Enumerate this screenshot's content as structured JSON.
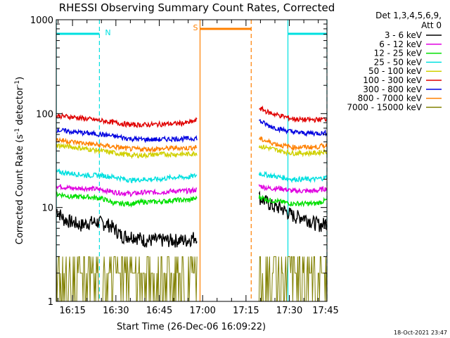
{
  "chart_data": {
    "type": "line",
    "title": "RHESSI Observing Summary Count Rates, Corrected",
    "xlabel": "Start Time (26-Dec-06 16:09:22)",
    "ylabel_main": "Corrected Count Rate (s",
    "ylabel_sup1": "-1",
    "ylabel_mid": " detector",
    "ylabel_sup2": "-1",
    "ylabel_end": ")",
    "yscale": "log",
    "ylim": [
      1,
      1000
    ],
    "xlim_min": [
      9.37,
      103.0
    ],
    "y_ticks": [
      "1",
      "10",
      "100",
      "1000"
    ],
    "x_ticks": [
      {
        "min": 15,
        "label": "16:15"
      },
      {
        "min": 30,
        "label": "16:30"
      },
      {
        "min": 45,
        "label": "16:45"
      },
      {
        "min": 60,
        "label": "17:00"
      },
      {
        "min": 75,
        "label": "17:15"
      },
      {
        "min": 90,
        "label": "17:30"
      },
      {
        "min": 105,
        "label": "17:45"
      }
    ],
    "legend": {
      "header1": "Det 1,3,4,5,6,9,",
      "header2": "Att 0",
      "position": "right"
    },
    "gap": [
      58.0,
      79.5
    ],
    "series": [
      {
        "name": "3 - 6 keV",
        "color": "#000000",
        "segments": [
          {
            "x": [
              9.4,
              12,
              15,
              18,
              21,
              24,
              28,
              32,
              36,
              40,
              44,
              48,
              52,
              55,
              58
            ],
            "y": [
              9.5,
              7.5,
              7,
              6.5,
              7,
              7,
              6.5,
              5,
              5,
              4.5,
              4.5,
              4.5,
              4.5,
              4.5,
              5
            ]
          },
          {
            "x": [
              79.5,
              81,
              83,
              85,
              87,
              89,
              92,
              95,
              98,
              101,
              103
            ],
            "y": [
              13,
              12,
              11,
              10,
              10,
              9,
              8,
              8,
              7,
              6.5,
              7
            ]
          }
        ]
      },
      {
        "name": "6 - 12 keV",
        "color": "#e000e0",
        "segments": [
          {
            "x": [
              9.4,
              15,
              20,
              25,
              30,
              35,
              40,
              45,
              50,
              55,
              58
            ],
            "y": [
              17,
              16,
              16,
              15.5,
              14.5,
              14,
              14.5,
              14.5,
              15,
              15,
              15.5
            ]
          },
          {
            "x": [
              79.5,
              83,
              87,
              91,
              95,
              99,
              103
            ],
            "y": [
              17,
              16,
              16,
              15,
              15,
              15,
              16
            ]
          }
        ]
      },
      {
        "name": "12 - 25 keV",
        "color": "#00e000",
        "segments": [
          {
            "x": [
              9.4,
              15,
              20,
              25,
              30,
              35,
              40,
              45,
              50,
              55,
              58
            ],
            "y": [
              14,
              13,
              13,
              12.5,
              11,
              11,
              11.5,
              11.5,
              12,
              12,
              12.5
            ]
          },
          {
            "x": [
              79.5,
              83,
              87,
              91,
              95,
              99,
              103
            ],
            "y": [
              13,
              12,
              11.5,
              11,
              11,
              11,
              12
            ]
          }
        ]
      },
      {
        "name": "25 - 50 keV",
        "color": "#00e0e0",
        "segments": [
          {
            "x": [
              9.4,
              15,
              20,
              25,
              30,
              35,
              40,
              45,
              50,
              55,
              58
            ],
            "y": [
              24,
              23,
              22,
              22,
              21,
              19.5,
              20,
              20,
              21,
              21,
              22
            ]
          },
          {
            "x": [
              79.5,
              83,
              87,
              91,
              95,
              99,
              103
            ],
            "y": [
              23,
              22,
              21,
              20,
              20,
              20,
              21
            ]
          }
        ]
      },
      {
        "name": "50 - 100 keV",
        "color": "#d0d000",
        "segments": [
          {
            "x": [
              9.4,
              15,
              20,
              25,
              30,
              35,
              40,
              45,
              50,
              55,
              58
            ],
            "y": [
              46,
              44,
              42,
              40,
              38,
              36,
              36,
              37,
              37,
              37,
              38
            ]
          },
          {
            "x": [
              79.5,
              83,
              87,
              91,
              95,
              99,
              103
            ],
            "y": [
              45,
              43,
              40,
              38,
              38,
              38,
              40
            ]
          }
        ]
      },
      {
        "name": "100 - 300 keV",
        "color": "#e00000",
        "segments": [
          {
            "x": [
              9.4,
              15,
              20,
              25,
              30,
              35,
              40,
              45,
              50,
              55,
              58
            ],
            "y": [
              95,
              92,
              88,
              84,
              80,
              76,
              76,
              77,
              78,
              80,
              85
            ]
          },
          {
            "x": [
              79.5,
              83,
              87,
              91,
              95,
              99,
              103
            ],
            "y": [
              115,
              102,
              95,
              88,
              86,
              86,
              88
            ]
          }
        ]
      },
      {
        "name": "300 - 800 keV",
        "color": "#0000e0",
        "segments": [
          {
            "x": [
              9.4,
              15,
              20,
              25,
              30,
              35,
              40,
              45,
              50,
              55,
              58
            ],
            "y": [
              67,
              64,
              62,
              60,
              57,
              54,
              53,
              53,
              54,
              54,
              55
            ]
          },
          {
            "x": [
              79.5,
              83,
              87,
              91,
              95,
              99,
              103
            ],
            "y": [
              84,
              74,
              68,
              64,
              62,
              62,
              62
            ]
          }
        ]
      },
      {
        "name": "800 - 7000 keV",
        "color": "#ff8000",
        "segments": [
          {
            "x": [
              9.4,
              15,
              20,
              25,
              30,
              35,
              40,
              45,
              50,
              55,
              58
            ],
            "y": [
              53,
              50,
              48,
              46,
              44,
              42,
              42,
              42,
              43,
              43,
              44
            ]
          },
          {
            "x": [
              79.5,
              83,
              87,
              91,
              95,
              99,
              103
            ],
            "y": [
              54,
              50,
              46,
              44,
              44,
              44,
              46
            ]
          }
        ]
      },
      {
        "name": "7000 - 15000 keV",
        "color": "#808000",
        "segments": [
          {
            "x": [
              9.4,
              58
            ],
            "y": [
              2,
              2
            ]
          },
          {
            "x": [
              79.5,
              103
            ],
            "y": [
              2,
              2
            ]
          }
        ]
      }
    ],
    "flag_lines": [
      {
        "type": "N",
        "color": "#00e0e0",
        "intervals": [
          [
            9.4,
            24.3
          ],
          [
            89.5,
            103
          ]
        ],
        "dashed_edges": [
          24.3,
          103
        ],
        "solid_edges": [
          9.4,
          89.5
        ]
      },
      {
        "type": "S",
        "color": "#ff8000",
        "intervals": [
          [
            59.1,
            76.8
          ]
        ],
        "dashed_edges": [
          76.8
        ],
        "solid_edges": [
          59.1
        ]
      }
    ],
    "flag_letters": {
      "N": "N",
      "S": "S"
    },
    "footer_date": "18-Oct-2021 23:47"
  }
}
